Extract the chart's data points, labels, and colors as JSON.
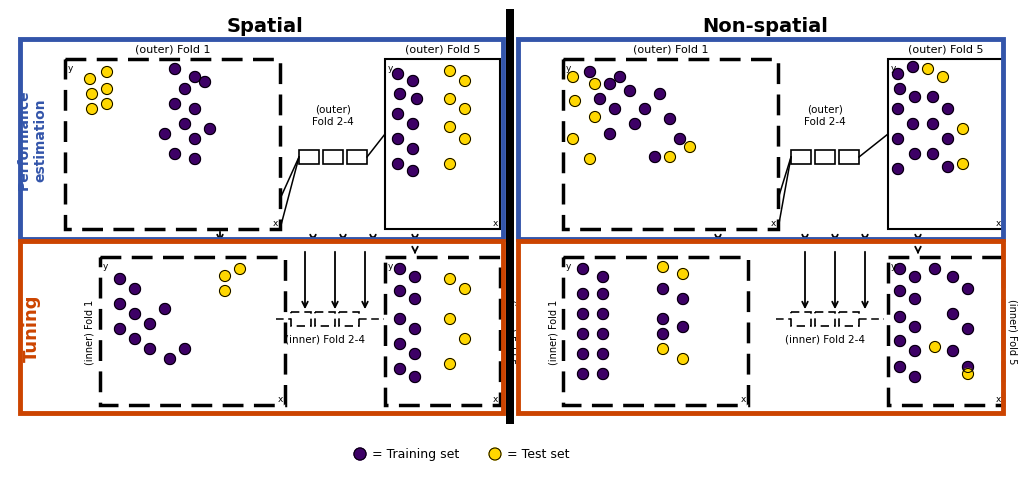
{
  "title_spatial": "Spatial",
  "title_nonspatial": "Non-spatial",
  "perf_label": "Performance\nestimation",
  "tuning_label": "Tuning",
  "outer_fold1_label": "(outer) Fold 1",
  "outer_fold5_label": "(outer) Fold 5",
  "outer_fold24_label": "(outer)\nFold 2-4",
  "inner_fold1_label": "(inner) Fold 1",
  "inner_fold5_label": "(inner) Fold 5",
  "inner_fold24_label": "(inner) Fold 2-4",
  "legend_train": "= Training set",
  "legend_test": "= Test set",
  "purple": "#3d0066",
  "yellow": "#FFD700",
  "blue_border": "#3355aa",
  "red_border": "#CC4400",
  "black": "#000000",
  "white": "#FFFFFF"
}
